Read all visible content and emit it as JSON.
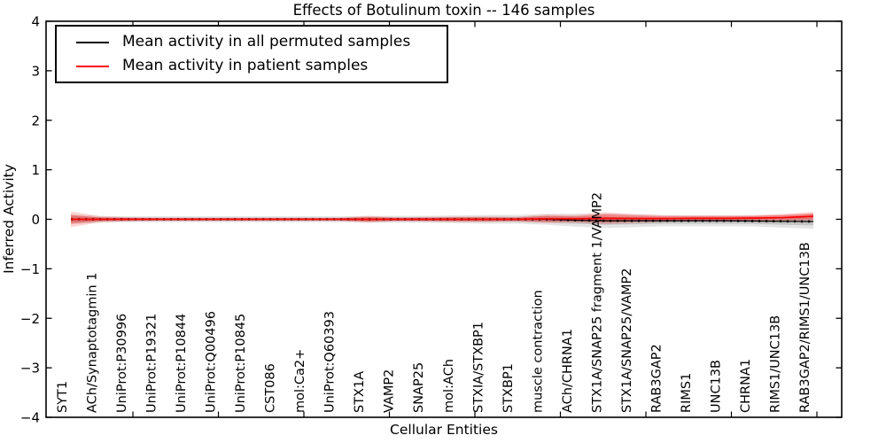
{
  "chart_data": {
    "type": "line",
    "title": "Effects of Botulinum toxin -- 146 samples",
    "xlabel": "Cellular Entities",
    "ylabel": "Inferred Activity",
    "ylim": [
      -4,
      4
    ],
    "ytick_labels": [
      "4",
      "3",
      "2",
      "1",
      "0",
      "−1",
      "−2",
      "−3",
      "−4"
    ],
    "grid": false,
    "legend_position": "upper left",
    "categories": [
      "SYT1",
      "ACh/Synaptotagmin 1",
      "UniProt:P30996",
      "UniProt:P19321",
      "UniProt:P10844",
      "UniProt:Q00496",
      "UniProt:P10845",
      "CST086",
      "mol:Ca2+",
      "UniProt:Q60393",
      "STX1A",
      "VAMP2",
      "SNAP25",
      "mol:ACh",
      "STXIA/STXBP1",
      "STXBP1",
      "muscle contraction",
      "ACh/CHRNA1",
      "STX1A/SNAP25 fragment 1/VAMP2",
      "STX1A/SNAP25/VAMP2",
      "RAB3GAP2",
      "RIMS1",
      "UNC13B",
      "CHRNA1",
      "RIMS1/UNC13B",
      "RAB3GAP2/RIMS1/UNC13B"
    ],
    "series": [
      {
        "name": "Mean activity in all permuted samples",
        "color": "#000000",
        "band_color": "#000000",
        "values": [
          0,
          0,
          0,
          0,
          0,
          0,
          0,
          0,
          0,
          0,
          0,
          0,
          0,
          0,
          0,
          0,
          0,
          -0.02,
          -0.03,
          -0.03,
          -0.03,
          -0.03,
          -0.03,
          -0.035,
          -0.04,
          -0.045
        ],
        "band_inner": [
          0.06,
          0.04,
          0.035,
          0.035,
          0.035,
          0.035,
          0.035,
          0.035,
          0.035,
          0.035,
          0.04,
          0.04,
          0.04,
          0.045,
          0.05,
          0.05,
          0.06,
          0.07,
          0.08,
          0.07,
          0.06,
          0.06,
          0.06,
          0.06,
          0.07,
          0.08
        ],
        "band_outer": [
          0.1,
          0.07,
          0.06,
          0.06,
          0.06,
          0.06,
          0.06,
          0.06,
          0.06,
          0.06,
          0.07,
          0.07,
          0.07,
          0.08,
          0.09,
          0.09,
          0.11,
          0.13,
          0.15,
          0.13,
          0.11,
          0.11,
          0.11,
          0.11,
          0.13,
          0.15
        ]
      },
      {
        "name": "Mean activity in patient samples",
        "color": "#ff0000",
        "band_color": "#ff0000",
        "values": [
          0,
          0,
          0,
          0,
          0,
          0,
          0,
          0,
          0,
          0,
          0,
          0,
          0,
          0,
          0,
          0,
          0.01,
          0.01,
          0.02,
          0.015,
          0.015,
          0.02,
          0.02,
          0.025,
          0.035,
          0.06
        ],
        "band_inner": [
          0.09,
          0.035,
          0.025,
          0.02,
          0.02,
          0.02,
          0.02,
          0.02,
          0.02,
          0.02,
          0.045,
          0.025,
          0.03,
          0.035,
          0.035,
          0.03,
          0.06,
          0.05,
          0.08,
          0.06,
          0.045,
          0.04,
          0.04,
          0.04,
          0.05,
          0.06
        ],
        "band_outer": [
          0.16,
          0.06,
          0.04,
          0.03,
          0.03,
          0.03,
          0.03,
          0.03,
          0.03,
          0.03,
          0.07,
          0.04,
          0.05,
          0.055,
          0.055,
          0.05,
          0.09,
          0.08,
          0.12,
          0.09,
          0.07,
          0.06,
          0.06,
          0.06,
          0.075,
          0.09
        ]
      }
    ]
  }
}
